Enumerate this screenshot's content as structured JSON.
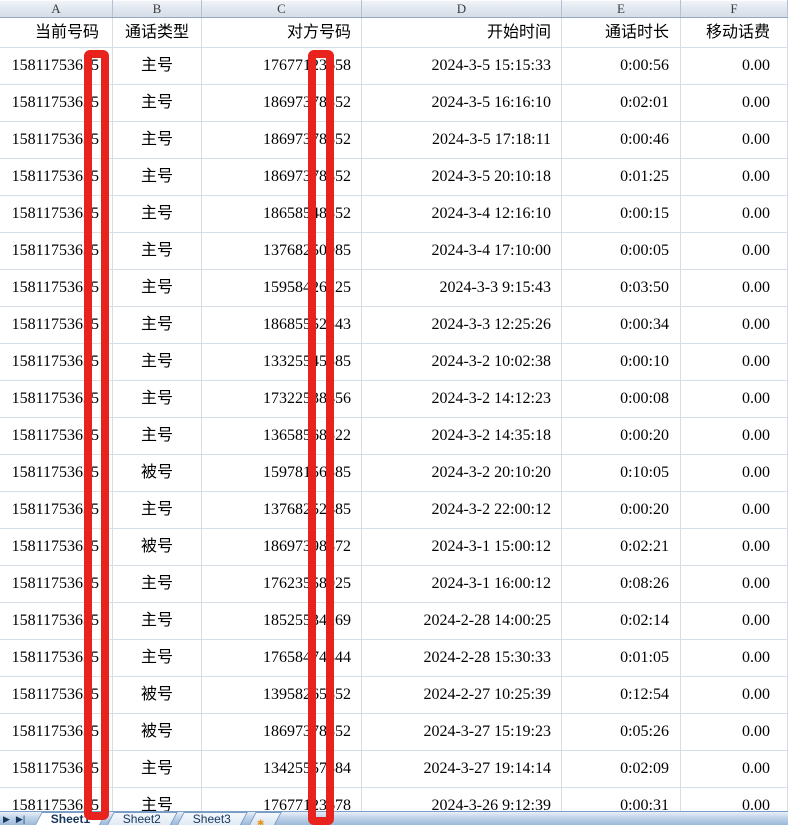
{
  "colors": {
    "redaction_red": "#e8231d",
    "gridline": "#d5dde7",
    "tab_text": "#17365d"
  },
  "sheet": {
    "column_letters": [
      "A",
      "B",
      "C",
      "D",
      "E",
      "F"
    ],
    "headers": [
      "当前号码",
      "通话类型",
      "对方号码",
      "开始时间",
      "通话时长",
      "移动话费"
    ],
    "rows": [
      [
        "15811753635",
        "主号",
        "17677123658",
        "2024-3-5 15:15:33",
        "0:00:56",
        "0.00"
      ],
      [
        "15811753635",
        "主号",
        "18697378852",
        "2024-3-5 16:16:10",
        "0:02:01",
        "0.00"
      ],
      [
        "15811753635",
        "主号",
        "18697378852",
        "2024-3-5 17:18:11",
        "0:00:46",
        "0.00"
      ],
      [
        "15811753635",
        "主号",
        "18697378852",
        "2024-3-5 20:10:18",
        "0:01:25",
        "0.00"
      ],
      [
        "15811753635",
        "主号",
        "18658548852",
        "2024-3-4 12:16:10",
        "0:00:15",
        "0.00"
      ],
      [
        "15811753635",
        "主号",
        "13768250985",
        "2024-3-4 17:10:00",
        "0:00:05",
        "0.00"
      ],
      [
        "15811753635",
        "主号",
        "15958426225",
        "2024-3-3 9:15:43",
        "0:03:50",
        "0.00"
      ],
      [
        "15811753635",
        "主号",
        "18685552543",
        "2024-3-3 12:25:26",
        "0:00:34",
        "0.00"
      ],
      [
        "15811753635",
        "主号",
        "13325545585",
        "2024-3-2 10:02:38",
        "0:00:10",
        "0.00"
      ],
      [
        "15811753635",
        "主号",
        "17322538456",
        "2024-3-2 14:12:23",
        "0:00:08",
        "0.00"
      ],
      [
        "15811753635",
        "主号",
        "13658568522",
        "2024-3-2 14:35:18",
        "0:00:20",
        "0.00"
      ],
      [
        "15811753635",
        "被号",
        "15978156585",
        "2024-3-2 20:10:20",
        "0:10:05",
        "0.00"
      ],
      [
        "15811753635",
        "主号",
        "13768252485",
        "2024-3-2 22:00:12",
        "0:00:20",
        "0.00"
      ],
      [
        "15811753635",
        "被号",
        "18697398872",
        "2024-3-1 15:00:12",
        "0:02:21",
        "0.00"
      ],
      [
        "15811753635",
        "主号",
        "17623558025",
        "2024-3-1 16:00:12",
        "0:08:26",
        "0.00"
      ],
      [
        "15811753635",
        "主号",
        "18525534269",
        "2024-2-28 14:00:25",
        "0:02:14",
        "0.00"
      ],
      [
        "15811753635",
        "主号",
        "17658474844",
        "2024-2-28 15:30:33",
        "0:01:05",
        "0.00"
      ],
      [
        "15811753635",
        "被号",
        "13958265852",
        "2024-2-27 10:25:39",
        "0:12:54",
        "0.00"
      ],
      [
        "15811753635",
        "被号",
        "18697378852",
        "2024-3-27 15:19:23",
        "0:05:26",
        "0.00"
      ],
      [
        "15811753635",
        "主号",
        "13425557584",
        "2024-3-27 19:14:14",
        "0:02:09",
        "0.00"
      ],
      [
        "15811753635",
        "主号",
        "17677123678",
        "2024-3-26 9:12:39",
        "0:00:31",
        "0.00"
      ]
    ]
  },
  "tab_bar": {
    "scroll_left_icon": "▶",
    "scroll_right_icon": "▶|",
    "tabs": [
      "Sheet1",
      "Sheet2",
      "Sheet3"
    ],
    "active_tab": "Sheet1",
    "insert_icon": "✱"
  }
}
